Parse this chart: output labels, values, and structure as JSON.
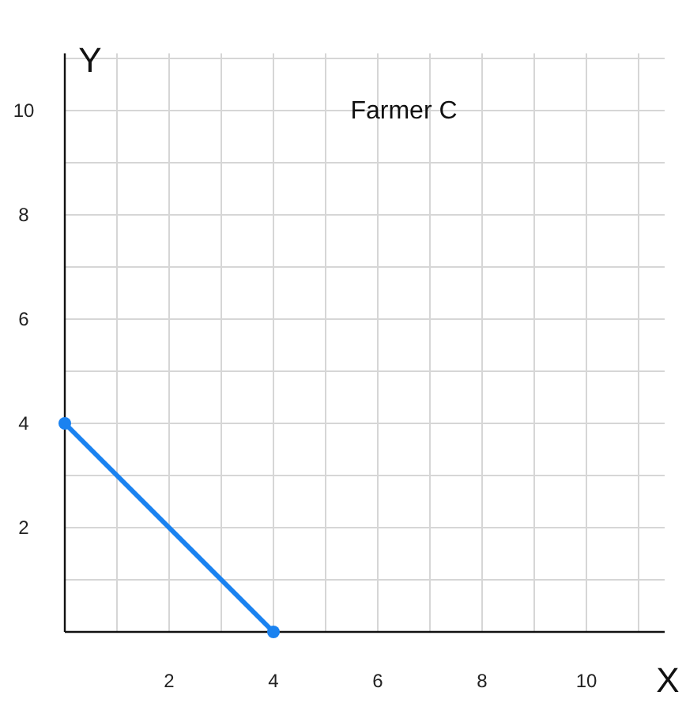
{
  "chart_data": {
    "type": "line",
    "title": "Farmer C",
    "xlabel": "X",
    "ylabel": "Y",
    "x": [
      0,
      4
    ],
    "series": [
      {
        "color": "#1a82f0",
        "values": [
          4,
          0
        ]
      }
    ],
    "xlim": [
      0,
      11.5
    ],
    "ylim": [
      0,
      11.1
    ],
    "xticks": [
      {
        "value": 1,
        "label": null
      },
      2,
      {
        "value": 3,
        "label": null
      },
      4,
      {
        "value": 5,
        "label": null
      },
      6,
      {
        "value": 7,
        "label": null
      },
      8,
      {
        "value": 9,
        "label": null
      },
      10,
      {
        "value": 11,
        "label": null
      }
    ],
    "yticks": [
      {
        "value": 1,
        "label": null
      },
      2,
      {
        "value": 3,
        "label": null
      },
      4,
      {
        "value": 5,
        "label": null
      },
      6,
      {
        "value": 7,
        "label": null
      },
      8,
      {
        "value": 9,
        "label": null
      },
      10,
      {
        "value": 11,
        "label": null
      }
    ],
    "grid": true,
    "marker": "circle",
    "line_style": "solid"
  }
}
